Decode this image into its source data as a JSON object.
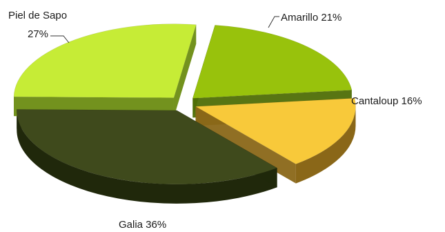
{
  "chart_data": {
    "type": "pie",
    "style": "3d-exploded",
    "categories": [
      "Amarillo",
      "Cantaloup",
      "Galia",
      "Piel de Sapo"
    ],
    "values": [
      21,
      16,
      36,
      27
    ],
    "unit": "%",
    "slice_labels": [
      "Amarillo 21%",
      "Cantaloup 16%",
      "Galia 36%",
      "Piel de Sapo 27%"
    ],
    "colors": [
      "#98c20c",
      "#f8c93a",
      "#3f4a1c",
      "#c6ec36"
    ],
    "side_colors": [
      "#4f6e06",
      "#8a6718",
      "#20280b",
      "#6c8c12"
    ],
    "title": "",
    "legend": "none"
  }
}
